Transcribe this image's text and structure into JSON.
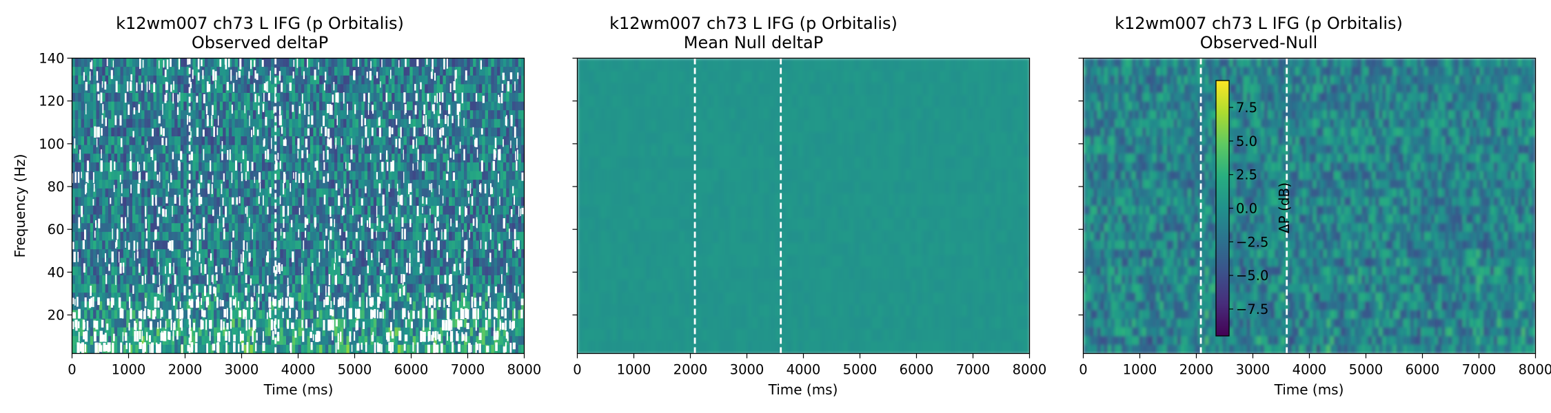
{
  "chart_data": [
    {
      "type": "heatmap",
      "title": "k12wm007 ch73 L IFG (p Orbitalis)",
      "subtitle": "Observed deltaP",
      "xlabel": "Time (ms)",
      "ylabel": "Frequency (Hz)",
      "xlim": [
        0,
        8000
      ],
      "ylim": [
        2,
        140
      ],
      "x_ticks": [
        "0",
        "1000",
        "2000",
        "3000",
        "4000",
        "5000",
        "6000",
        "7000",
        "8000"
      ],
      "y_ticks": [
        "20",
        "40",
        "60",
        "80",
        "100",
        "120",
        "140"
      ],
      "event_markers_ms": [
        2080,
        3600
      ],
      "colormap": "viridis",
      "pattern": "noisy power map with white gaps (missing values), brighter green patches at low frequencies"
    },
    {
      "type": "heatmap",
      "title": "k12wm007 ch73 L IFG (p Orbitalis)",
      "subtitle": "Mean Null deltaP",
      "xlabel": "Time (ms)",
      "ylabel": "",
      "xlim": [
        0,
        8000
      ],
      "ylim": [
        2,
        140
      ],
      "x_ticks": [
        "0",
        "1000",
        "2000",
        "3000",
        "4000",
        "5000",
        "6000",
        "7000",
        "8000"
      ],
      "y_ticks": [],
      "event_markers_ms": [
        2080,
        3600
      ],
      "colormap": "viridis",
      "pattern": "near-uniform map close to 0 dB"
    },
    {
      "type": "heatmap",
      "title": "k12wm007 ch73 L IFG (p Orbitalis)",
      "subtitle": "Observed-Null",
      "xlabel": "Time (ms)",
      "ylabel": "",
      "xlim": [
        0,
        8000
      ],
      "ylim": [
        2,
        140
      ],
      "x_ticks": [
        "0",
        "1000",
        "2000",
        "3000",
        "4000",
        "5000",
        "6000",
        "7000",
        "8000"
      ],
      "y_ticks": [],
      "event_markers_ms": [
        2080,
        3600
      ],
      "colormap": "viridis",
      "pattern": "smooth noisy difference map, vertical streaks at low frequencies",
      "colorbar": {
        "label": "ΔP (dB)",
        "range": [
          -9.5,
          9.5
        ],
        "ticks": [
          7.5,
          5.0,
          2.5,
          0.0,
          -2.5,
          -5.0,
          -7.5
        ],
        "tick_labels": [
          "7.5",
          "5.0",
          "2.5",
          "0.0",
          "−2.5",
          "−5.0",
          "−7.5"
        ]
      }
    }
  ]
}
